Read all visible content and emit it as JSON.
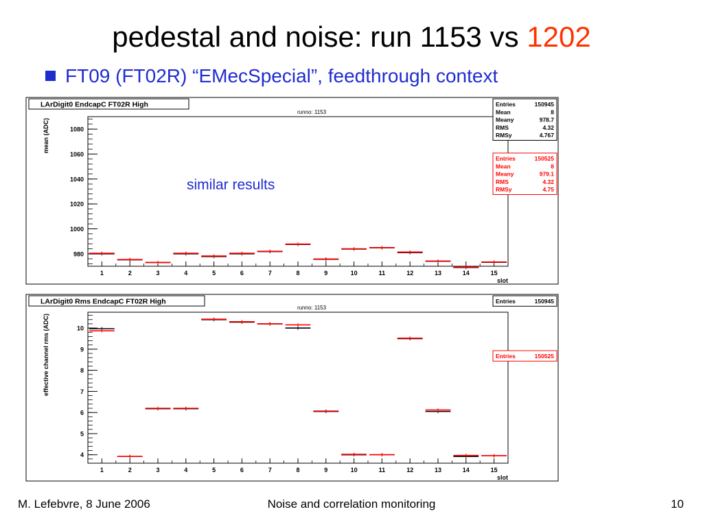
{
  "slide": {
    "title_main": "pedestal and noise: run 1153 vs ",
    "title_highlight": "1202",
    "bullet": "FT09 (FT02R) “EMecSpecial”, feedthrough context",
    "note": "similar results",
    "footer_left": "M. Lefebvre, 8 June 2006",
    "footer_center": "Noise and correlation monitoring",
    "footer_right": "10"
  },
  "colors": {
    "run1153": "#000000",
    "run1202": "#ff0000",
    "accent": "#1f2ccf",
    "title_highlight": "#ff3300"
  },
  "chart_data": [
    {
      "type": "scatter",
      "name_box": "LArDigit0 EndcapC FT02R High",
      "plot_title": "runno: 1153",
      "xlabel": "slot",
      "ylabel": "mean (ADC)",
      "xlim": [
        0.5,
        15.5
      ],
      "ylim": [
        970,
        1090
      ],
      "yticks": [
        980,
        1000,
        1020,
        1040,
        1060,
        1080
      ],
      "xticks": [
        1,
        2,
        3,
        4,
        5,
        6,
        7,
        8,
        9,
        10,
        11,
        12,
        13,
        14,
        15
      ],
      "grid": false,
      "series": [
        {
          "color": "#000000",
          "x": [
            1,
            2,
            3,
            4,
            5,
            6,
            7,
            8,
            9,
            10,
            11,
            12,
            13,
            14,
            15
          ],
          "values": [
            980.0,
            975.2,
            973.0,
            980.0,
            977.8,
            980.0,
            981.8,
            987.5,
            975.6,
            983.8,
            984.8,
            981.0,
            974.0,
            969.0,
            973.2
          ]
        },
        {
          "color": "#ff0000",
          "x": [
            1,
            2,
            3,
            4,
            5,
            6,
            7,
            8,
            9,
            10,
            11,
            12,
            13,
            14,
            15
          ],
          "values": [
            980.4,
            975.4,
            973.0,
            980.4,
            978.2,
            980.4,
            982.0,
            987.8,
            975.8,
            984.0,
            985.0,
            981.4,
            974.2,
            969.2,
            973.4
          ]
        }
      ],
      "stats_boxes": [
        {
          "color": "#000000",
          "rows": [
            {
              "label": "Entries",
              "value": "150945"
            },
            {
              "label": "Mean",
              "value": "8"
            },
            {
              "label": "Meany",
              "value": "978.7"
            },
            {
              "label": "RMS",
              "value": "4.32"
            },
            {
              "label": "RMSy",
              "value": "4.767"
            }
          ]
        },
        {
          "color": "#ff0000",
          "rows": [
            {
              "label": "Entries",
              "value": "150525"
            },
            {
              "label": "Mean",
              "value": "8"
            },
            {
              "label": "Meany",
              "value": "979.1"
            },
            {
              "label": "RMS",
              "value": "4.32"
            },
            {
              "label": "RMSy",
              "value": "4.75"
            }
          ]
        }
      ]
    },
    {
      "type": "scatter",
      "name_box": "LArDigit0 Rms EndcapC FT02R High",
      "plot_title": "runno: 1153",
      "xlabel": "slot",
      "ylabel": "effective channel rms (ADC)",
      "xlim": [
        0.5,
        15.5
      ],
      "ylim": [
        3.6,
        10.75
      ],
      "yticks": [
        4,
        5,
        6,
        7,
        8,
        9,
        10
      ],
      "xticks": [
        1,
        2,
        3,
        4,
        5,
        6,
        7,
        8,
        9,
        10,
        11,
        12,
        13,
        14,
        15
      ],
      "grid": false,
      "series": [
        {
          "color": "#000000",
          "x": [
            1,
            2,
            3,
            4,
            5,
            6,
            7,
            8,
            9,
            10,
            11,
            12,
            13,
            14,
            15
          ],
          "values": [
            9.97,
            3.92,
            6.18,
            6.18,
            10.4,
            10.28,
            10.2,
            10.0,
            6.05,
            4.0,
            4.0,
            9.5,
            6.05,
            3.92,
            3.95
          ]
        },
        {
          "color": "#ff0000",
          "x": [
            1,
            2,
            3,
            4,
            5,
            6,
            7,
            8,
            9,
            10,
            11,
            12,
            13,
            14,
            15
          ],
          "values": [
            9.87,
            3.92,
            6.2,
            6.2,
            10.42,
            10.3,
            10.2,
            10.15,
            6.07,
            4.02,
            4.0,
            9.52,
            6.12,
            3.97,
            3.95
          ]
        }
      ],
      "stats_boxes": [
        {
          "color": "#000000",
          "rows": [
            {
              "label": "Entries",
              "value": "150945"
            }
          ]
        },
        {
          "color": "#ff0000",
          "rows": [
            {
              "label": "Entries",
              "value": "150525"
            }
          ]
        }
      ]
    }
  ]
}
